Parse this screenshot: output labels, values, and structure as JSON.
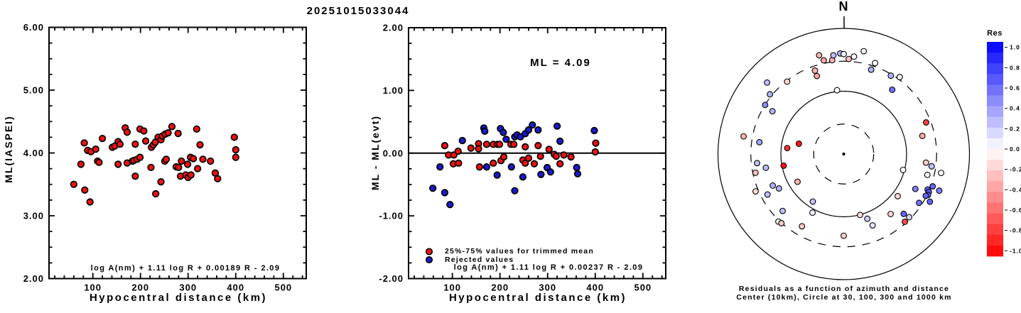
{
  "title": "20251015033044",
  "chart_data": {
    "left_plot": {
      "type": "scatter",
      "xlabel": "Hypocentral distance (km)",
      "ylabel": "ML(IASPEI)",
      "equation": "log A(nm) + 1.11 log R + 0.00189 R - 2.09",
      "xlim": [
        8,
        548
      ],
      "ylim": [
        2,
        6
      ],
      "xticks": [
        [
          100,
          "100"
        ],
        [
          200,
          "200"
        ],
        [
          300,
          "300"
        ],
        [
          400,
          "400"
        ],
        [
          500,
          "500"
        ]
      ],
      "yticks": [
        [
          6,
          "6.00"
        ],
        [
          5,
          "5.00"
        ],
        [
          4,
          "4.00"
        ],
        [
          3,
          "3.00"
        ],
        [
          2,
          "2.00"
        ]
      ],
      "xtick_minor_step": 20,
      "ytick_minor_step": 0.25,
      "point_color": "#ee1111",
      "points": [
        [
          60,
          3.5
        ],
        [
          75,
          3.82
        ],
        [
          82,
          4.16
        ],
        [
          83,
          3.41
        ],
        [
          89,
          4.04
        ],
        [
          94,
          3.22
        ],
        [
          96,
          4.02
        ],
        [
          106,
          4.06
        ],
        [
          110,
          3.87
        ],
        [
          113,
          3.85
        ],
        [
          120,
          4.23
        ],
        [
          141,
          4.09
        ],
        [
          146,
          4.11
        ],
        [
          153,
          4.18
        ],
        [
          153,
          3.82
        ],
        [
          157,
          4.14
        ],
        [
          168,
          4.4
        ],
        [
          172,
          4.33
        ],
        [
          172,
          3.84
        ],
        [
          183,
          3.87
        ],
        [
          186,
          3.88
        ],
        [
          189,
          4.14
        ],
        [
          189,
          3.63
        ],
        [
          193,
          3.9
        ],
        [
          199,
          4.38
        ],
        [
          199,
          3.93
        ],
        [
          207,
          4.35
        ],
        [
          211,
          4.19
        ],
        [
          222,
          3.77
        ],
        [
          223,
          4.09
        ],
        [
          227,
          4.13
        ],
        [
          231,
          4.17
        ],
        [
          232,
          3.35
        ],
        [
          237,
          4.25
        ],
        [
          243,
          3.54
        ],
        [
          243,
          4.21
        ],
        [
          246,
          4.27
        ],
        [
          251,
          3.87
        ],
        [
          252,
          4.3
        ],
        [
          254,
          3.9
        ],
        [
          258,
          4.32
        ],
        [
          266,
          4.42
        ],
        [
          275,
          3.78
        ],
        [
          279,
          4.31
        ],
        [
          280,
          3.77
        ],
        [
          284,
          3.63
        ],
        [
          286,
          3.87
        ],
        [
          295,
          3.65
        ],
        [
          299,
          3.82
        ],
        [
          300,
          3.61
        ],
        [
          305,
          3.93
        ],
        [
          306,
          3.65
        ],
        [
          311,
          3.91
        ],
        [
          318,
          4.38
        ],
        [
          320,
          3.75
        ],
        [
          325,
          4.13
        ],
        [
          331,
          3.9
        ],
        [
          347,
          3.87
        ],
        [
          357,
          3.68
        ],
        [
          362,
          3.59
        ],
        [
          397,
          4.25
        ],
        [
          400,
          4.05
        ],
        [
          400,
          3.93
        ]
      ]
    },
    "middle_plot": {
      "type": "scatter",
      "xlabel": "Hypocentral distance (km)",
      "ylabel": "ML - ML(evt)",
      "annotation": "ML = 4.09",
      "equation": "log A(nm) + 1.11 log R + 0.00237 R - 2.09",
      "zero_line": 0.0,
      "xlim": [
        8,
        548
      ],
      "ylim": [
        -2,
        2
      ],
      "xticks": [
        [
          100,
          "100"
        ],
        [
          200,
          "200"
        ],
        [
          300,
          "300"
        ],
        [
          400,
          "400"
        ],
        [
          500,
          "500"
        ]
      ],
      "yticks": [
        [
          2,
          "2.00"
        ],
        [
          1,
          "1.00"
        ],
        [
          0,
          "0.00"
        ],
        [
          -1,
          "-1.00"
        ],
        [
          -2,
          "-2.00"
        ]
      ],
      "xtick_minor_step": 20,
      "ytick_minor_step": 0.25,
      "legend": [
        {
          "label": "25%-75% values for trimmed mean",
          "color": "#ee1111"
        },
        {
          "label": "Rejected values",
          "color": "#1a1acd"
        }
      ],
      "series": [
        {
          "name": "trimmed",
          "color": "#ee1111",
          "points": [
            [
              84,
              0.12
            ],
            [
              92,
              -0.03
            ],
            [
              102,
              -0.17
            ],
            [
              103,
              -0.03
            ],
            [
              112,
              0.03
            ],
            [
              113,
              -0.16
            ],
            [
              139,
              0.08
            ],
            [
              155,
              0.15
            ],
            [
              155,
              0.07
            ],
            [
              157,
              -0.22
            ],
            [
              172,
              0.14
            ],
            [
              186,
              0.14
            ],
            [
              186,
              -0.16
            ],
            [
              195,
              0.14
            ],
            [
              199,
              0.14
            ],
            [
              202,
              -0.12
            ],
            [
              208,
              -0.06
            ],
            [
              223,
              0.14
            ],
            [
              229,
              0.14
            ],
            [
              248,
              -0.11
            ],
            [
              253,
              0.1
            ],
            [
              253,
              -0.16
            ],
            [
              260,
              -0.08
            ],
            [
              272,
              -0.17
            ],
            [
              280,
              0.12
            ],
            [
              285,
              -0.05
            ],
            [
              303,
              0.06
            ],
            [
              314,
              -0.02
            ],
            [
              318,
              -0.05
            ],
            [
              326,
              -0.17
            ],
            [
              334,
              -0.03
            ],
            [
              349,
              -0.06
            ],
            [
              401,
              0.16
            ],
            [
              400,
              0.02
            ]
          ]
        },
        {
          "name": "rejected",
          "color": "#1a1acd",
          "points": [
            [
              59,
              -0.56
            ],
            [
              74,
              -0.22
            ],
            [
              84,
              -0.63
            ],
            [
              95,
              -0.82
            ],
            [
              121,
              0.2
            ],
            [
              166,
              0.4
            ],
            [
              168,
              0.35
            ],
            [
              172,
              -0.22
            ],
            [
              194,
              -0.35
            ],
            [
              201,
              0.39
            ],
            [
              207,
              0.33
            ],
            [
              213,
              0.22
            ],
            [
              224,
              -0.22
            ],
            [
              231,
              0.26
            ],
            [
              231,
              -0.6
            ],
            [
              236,
              0.29
            ],
            [
              243,
              0.26
            ],
            [
              248,
              -0.38
            ],
            [
              253,
              0.31
            ],
            [
              260,
              0.37
            ],
            [
              268,
              0.45
            ],
            [
              280,
              0.37
            ],
            [
              286,
              -0.34
            ],
            [
              299,
              -0.23
            ],
            [
              306,
              -0.3
            ],
            [
              320,
              0.43
            ],
            [
              326,
              0.19
            ],
            [
              361,
              -0.23
            ],
            [
              363,
              -0.33
            ],
            [
              398,
              0.36
            ]
          ]
        }
      ]
    },
    "polar_plot": {
      "type": "scatter-polar",
      "north_label": "N",
      "caption_line1": "Residuals as a function of azimuth and distance",
      "caption_line2": "Center (10km), Circle at 30, 100, 300 and 1000 km",
      "center_km": 10,
      "rings": [
        {
          "km": 30,
          "style": "dashed"
        },
        {
          "km": 100,
          "style": "solid"
        },
        {
          "km": 300,
          "style": "dashed"
        },
        {
          "km": 1000,
          "style": "solid"
        }
      ],
      "points": [
        [
          346,
          417,
          -0.3
        ],
        [
          348,
          335,
          -0.35
        ],
        [
          353,
          320,
          -0.3
        ],
        [
          354,
          380,
          0.25
        ],
        [
          358,
          400,
          0.3
        ],
        [
          0,
          390,
          0.05
        ],
        [
          3,
          327,
          -0.25
        ],
        [
          6,
          363,
          0.0
        ],
        [
          11,
          465,
          0.05
        ],
        [
          19,
          340,
          0.0
        ],
        [
          18,
          258,
          0.3
        ],
        [
          31,
          285,
          0.3
        ],
        [
          36,
          327,
          -0.05
        ],
        [
          37,
          191,
          0.55
        ],
        [
          341,
          254,
          -0.3
        ],
        [
          341,
          206,
          -0.35
        ],
        [
          322,
          290,
          -0.15
        ],
        [
          313,
          465,
          0.25
        ],
        [
          309,
          324,
          0.3
        ],
        [
          302,
          298,
          0.45
        ],
        [
          301,
          210,
          0.3
        ],
        [
          354,
          105,
          0.0
        ],
        [
          69,
          253,
          -0.75
        ],
        [
          77,
          192,
          -0.35
        ],
        [
          280,
          414,
          -0.3
        ],
        [
          278,
          226,
          0.35
        ],
        [
          276,
          80,
          -0.8
        ],
        [
          283,
          54,
          -0.9
        ],
        [
          259,
          94,
          -0.9
        ],
        [
          264,
          243,
          0.25
        ],
        [
          260,
          181,
          0.25
        ],
        [
          258,
          272,
          -0.25
        ],
        [
          246,
          172,
          0.3
        ],
        [
          242,
          147,
          0.3
        ],
        [
          242,
          236,
          0.25
        ],
        [
          247,
          333,
          -0.15
        ],
        [
          227,
          213,
          0.25
        ],
        [
          239,
          72,
          -0.3
        ],
        [
          213,
          80,
          0.25
        ],
        [
          208,
          114,
          0.05
        ],
        [
          224,
          313,
          -0.05
        ],
        [
          222,
          303,
          -0.2
        ],
        [
          210,
          213,
          -0.2
        ],
        [
          180,
          200,
          -0.2
        ],
        [
          165,
          101,
          -0.15
        ],
        [
          160,
          125,
          0.2
        ],
        [
          158,
          168,
          0.1
        ],
        [
          142,
          163,
          -0.15
        ],
        [
          128,
          123,
          -0.15
        ],
        [
          105,
          95,
          0.0
        ],
        [
          135,
          223,
          0.6
        ],
        [
          134,
          280,
          0.15
        ],
        [
          138,
          283,
          -0.7
        ],
        [
          116,
          185,
          0.5
        ],
        [
          123,
          268,
          0.55
        ],
        [
          96,
          207,
          -0.2
        ],
        [
          98,
          258,
          0.25
        ],
        [
          104,
          235,
          0.05
        ],
        [
          101,
          378,
          0.0
        ],
        [
          110,
          320,
          0.6
        ],
        [
          113,
          281,
          0.6
        ],
        [
          114,
          303,
          0.65
        ],
        [
          116,
          310,
          0.6
        ],
        [
          117,
          291,
          0.6
        ],
        [
          119,
          369,
          0.6
        ],
        [
          111,
          424,
          0.5
        ]
      ]
    },
    "colorbar": {
      "title": "Res",
      "vmin": -1.0,
      "vmax": 1.0,
      "step": 0.1,
      "tick_labels": [
        "1.0",
        "0.8",
        "0.6",
        "0.4",
        "0.2",
        "0.0",
        "-0.2",
        "-0.4",
        "-0.6",
        "-0.8",
        "-1.0"
      ]
    }
  }
}
